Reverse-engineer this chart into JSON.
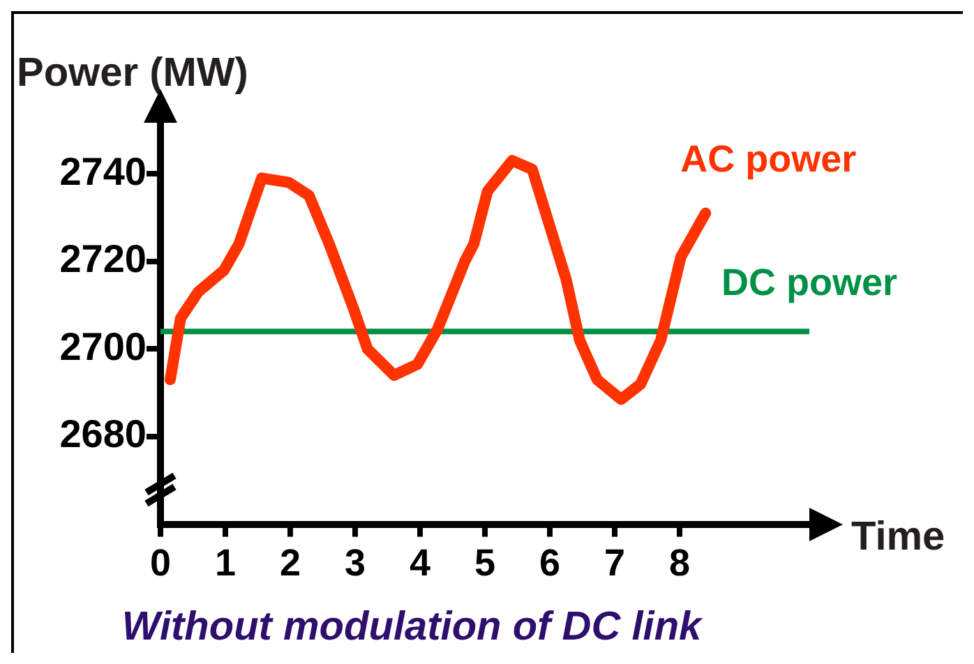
{
  "chart_data": {
    "type": "line",
    "title": "Without modulation of DC link",
    "xlabel": "Time",
    "ylabel": "Power (MW)",
    "xlim": [
      0,
      10
    ],
    "xticks": [
      0,
      1,
      2,
      3,
      4,
      5,
      6,
      7,
      8
    ],
    "ylim": [
      2660,
      2751
    ],
    "yticks": [
      2680,
      2700,
      2720,
      2740
    ],
    "grid": false,
    "legend": false,
    "marker": "none",
    "line_style": "solid",
    "series": [
      {
        "name": "AC power",
        "color": "#ff3300",
        "x": [
          0.15,
          0.31,
          0.58,
          0.98,
          1.21,
          1.56,
          1.98,
          2.29,
          2.6,
          2.98,
          3.19,
          3.6,
          3.96,
          4.27,
          4.69,
          4.83,
          5.04,
          5.42,
          5.73,
          6.0,
          6.25,
          6.46,
          6.73,
          7.1,
          7.4,
          7.71,
          8.02,
          8.4
        ],
        "values": [
          2693,
          2707,
          2713,
          2718,
          2724,
          2739,
          2738,
          2735,
          2724,
          2709,
          2700,
          2694,
          2696.5,
          2704.5,
          2720,
          2724,
          2736,
          2743,
          2741,
          2728,
          2716,
          2702,
          2693,
          2688.5,
          2692,
          2702,
          2721,
          2731
        ]
      },
      {
        "name": "DC power",
        "color": "#009146",
        "x": [
          0,
          10
        ],
        "values": [
          2704,
          2704
        ]
      }
    ]
  }
}
